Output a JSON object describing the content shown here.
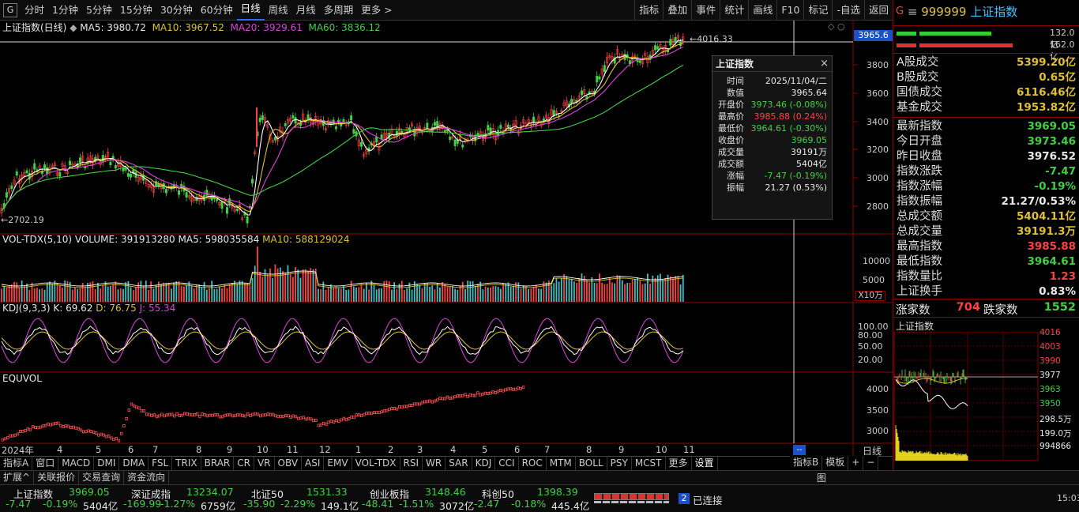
{
  "toolbar": {
    "logo": "G",
    "items": [
      "分时",
      "1分钟",
      "5分钟",
      "15分钟",
      "30分钟",
      "60分钟",
      "日线",
      "周线",
      "月线",
      "多周期",
      "更多 >"
    ],
    "active": "日线",
    "right": [
      "指标",
      "叠加",
      "事件",
      "统计",
      "画线",
      "F10",
      "标记",
      "-自选",
      "返回"
    ]
  },
  "header": {
    "code": "999999",
    "name": "上证指数",
    "g": "G",
    "menu": "≡"
  },
  "main": {
    "title": "上证指数(日线)",
    "ma5": "MA5: 3980.72",
    "ma10": "MA10: 3967.52",
    "ma20": "MA20: 3929.61",
    "ma60": "MA60: 3836.12",
    "cursor_price": "3965.6",
    "high_label": "4016.33",
    "low_label": "2702.19",
    "y_labels": [
      "3800",
      "3600",
      "3400",
      "3200",
      "3000",
      "2800"
    ]
  },
  "vol": {
    "title": "VOL-TDX(5,10)",
    "volume": "VOLUME: 391913280",
    "ma5": "MA5: 598035584",
    "ma10": "MA10: 588129024",
    "y_labels": [
      "10000",
      "5000"
    ],
    "unit": "X10万"
  },
  "kdj": {
    "title": "KDJ(9,3,3)",
    "k": "K: 69.62",
    "d": "D: 76.75",
    "j": "J: 55.34",
    "y_labels": [
      "100.00",
      "80.00",
      "50.00",
      "20.00"
    ]
  },
  "equvol": {
    "title": "EQUVOL",
    "y_labels": [
      "4000",
      "3500",
      "3000"
    ]
  },
  "xaxis": {
    "labels": [
      "2024年",
      "4",
      "5",
      "6",
      "7",
      "8",
      "9",
      "10",
      "11",
      "12",
      "1",
      "2",
      "3",
      "4",
      "5",
      "6",
      "7",
      "8",
      "9",
      "10",
      "11"
    ],
    "right_label": "日线",
    "cursor": "--"
  },
  "popup": {
    "title": "上证指数",
    "close": "×",
    "rows": [
      {
        "k": "时间",
        "v": "2025/11/04/二",
        "c": "w"
      },
      {
        "k": "数值",
        "v": "3965.64",
        "c": "w"
      },
      {
        "k": "开盘价",
        "v": "3973.46 (-0.08%)",
        "c": "g"
      },
      {
        "k": "最高价",
        "v": "3985.88 (0.24%)",
        "c": "r"
      },
      {
        "k": "最低价",
        "v": "3964.61 (-0.30%)",
        "c": "g"
      },
      {
        "k": "收盘价",
        "v": "3969.05",
        "c": "g"
      },
      {
        "k": "成交量",
        "v": "39191万",
        "c": "w"
      },
      {
        "k": "成交额",
        "v": "5404亿",
        "c": "w"
      },
      {
        "k": "涨幅",
        "v": "-7.47 (-0.19%)",
        "c": "g"
      },
      {
        "k": "振幅",
        "v": "21.27 (0.53%)",
        "c": "w"
      }
    ]
  },
  "right_panel": {
    "bars": [
      {
        "value": "132.0亿"
      },
      {
        "value": "162.0亿"
      }
    ],
    "stats": [
      {
        "k": "A股成交",
        "v": "5399.20亿",
        "c": "y"
      },
      {
        "k": "B股成交",
        "v": "0.65亿",
        "c": "y"
      },
      {
        "k": "国债成交",
        "v": "6116.46亿",
        "c": "y"
      },
      {
        "k": "基金成交",
        "v": "1953.82亿",
        "c": "y"
      },
      {
        "k": "最新指数",
        "v": "3969.05",
        "c": "g"
      },
      {
        "k": "今日开盘",
        "v": "3973.46",
        "c": "g"
      },
      {
        "k": "昨日收盘",
        "v": "3976.52",
        "c": "w"
      },
      {
        "k": "指数涨跌",
        "v": "-7.47",
        "c": "g"
      },
      {
        "k": "指数涨幅",
        "v": "-0.19%",
        "c": "g"
      },
      {
        "k": "指数振幅",
        "v": "21.27/0.53%",
        "c": "w"
      },
      {
        "k": "总成交额",
        "v": "5404.11亿",
        "c": "y"
      },
      {
        "k": "总成交量",
        "v": "39191.3万",
        "c": "y"
      },
      {
        "k": "最高指数",
        "v": "3985.88",
        "c": "r"
      },
      {
        "k": "最低指数",
        "v": "3964.61",
        "c": "g"
      },
      {
        "k": "指数量比",
        "v": "1.23",
        "c": "r"
      },
      {
        "k": "上证换手",
        "v": "0.83%",
        "c": "w"
      }
    ],
    "updown": {
      "up_label": "涨家数",
      "up": "704",
      "down_label": "跌家数",
      "down": "1552"
    },
    "mini": {
      "title": "上证指数",
      "y_labels": [
        "4016",
        "4003",
        "3990",
        "3977",
        "3963",
        "3950",
        "298.5万",
        "199.0万",
        "994866"
      ]
    }
  },
  "bottom_tabs": {
    "items": [
      "指标A",
      "窗口",
      "MACD",
      "DMI",
      "DMA",
      "FSL",
      "TRIX",
      "BRAR",
      "CR",
      "VR",
      "OBV",
      "ASI",
      "EMV",
      "VOL-TDX",
      "RSI",
      "WR",
      "SAR",
      "KDJ",
      "CCI",
      "ROC",
      "MTM",
      "BOLL",
      "PSY",
      "MCST",
      "更多",
      "设置"
    ],
    "right": [
      "指标B",
      "模板",
      "+",
      "−"
    ]
  },
  "sub_tabs": [
    "扩展^",
    "关联报价",
    "交易查询",
    "资金流向"
  ],
  "ticker": [
    {
      "name": "上证指数",
      "price": "3969.05",
      "chg": "-7.47",
      "pct": "-0.19%",
      "amt": "5404亿"
    },
    {
      "name": "深证成指",
      "price": "13234.07",
      "chg": "-169.99",
      "pct": "-1.27%",
      "amt": "6759亿"
    },
    {
      "name": "北证50",
      "price": "1531.33",
      "chg": "-35.90",
      "pct": "-2.29%",
      "amt": "149.1亿"
    },
    {
      "name": "创业板指",
      "price": "3148.46",
      "chg": "-48.41",
      "pct": "-1.51%",
      "amt": "3072亿"
    },
    {
      "name": "科创50",
      "price": "1398.39",
      "chg": "-2.47",
      "pct": "-0.18%",
      "amt": "445.4亿"
    }
  ],
  "conn": {
    "num": "2",
    "text": "已连接",
    "time": "15:03"
  },
  "colors": {
    "up": "#ff4040",
    "down": "#40d040",
    "yellow": "#e0c030",
    "border": "#8b0000"
  }
}
